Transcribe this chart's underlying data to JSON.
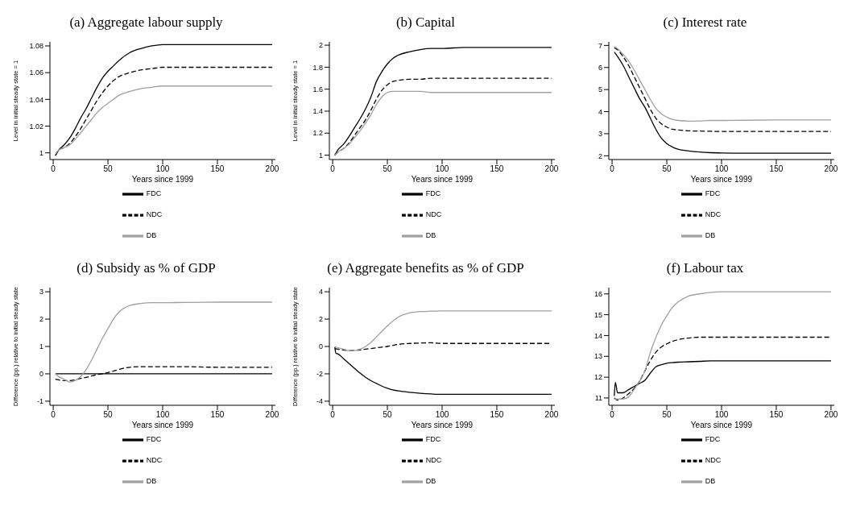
{
  "chart_data": [
    {
      "type": "line",
      "title": "(a) Aggregate labour supply",
      "xlabel": "Years since 1999",
      "ylabel": "Level in initial steady state = 1",
      "x": [
        2,
        5,
        10,
        15,
        20,
        25,
        30,
        35,
        40,
        45,
        50,
        55,
        60,
        70,
        80,
        90,
        100,
        120,
        150,
        200
      ],
      "xlim": [
        -3,
        203
      ],
      "xticks": [
        0,
        50,
        100,
        150,
        200
      ],
      "ylim": [
        0.995,
        1.083
      ],
      "yticks": [
        1,
        1.02,
        1.04,
        1.06,
        1.08
      ],
      "grid": false,
      "legend": "bottom",
      "series": [
        {
          "name": "FDC",
          "color": "#000000",
          "line_style": "solid",
          "values": [
            0.998,
            1.002,
            1.006,
            1.011,
            1.018,
            1.026,
            1.033,
            1.041,
            1.049,
            1.056,
            1.061,
            1.065,
            1.069,
            1.075,
            1.078,
            1.08,
            1.081,
            1.081,
            1.081,
            1.081
          ]
        },
        {
          "name": "NDC",
          "color": "#000000",
          "line_style": "dashed",
          "values": [
            0.998,
            1.002,
            1.004,
            1.007,
            1.012,
            1.018,
            1.025,
            1.032,
            1.039,
            1.045,
            1.05,
            1.054,
            1.057,
            1.06,
            1.062,
            1.063,
            1.064,
            1.064,
            1.064,
            1.064
          ]
        },
        {
          "name": "DB",
          "color": "#a0a0a0",
          "line_style": "solid",
          "values": [
            0.999,
            1.002,
            1.004,
            1.006,
            1.01,
            1.015,
            1.02,
            1.025,
            1.03,
            1.034,
            1.037,
            1.04,
            1.043,
            1.046,
            1.048,
            1.049,
            1.05,
            1.05,
            1.05,
            1.05
          ]
        }
      ]
    },
    {
      "type": "line",
      "title": "(b) Capital",
      "xlabel": "Years since 1999",
      "ylabel": "Level in initial steady state = 1",
      "x": [
        2,
        5,
        10,
        15,
        20,
        25,
        30,
        35,
        40,
        45,
        50,
        55,
        60,
        70,
        80,
        90,
        100,
        120,
        150,
        200
      ],
      "xlim": [
        -3,
        203
      ],
      "xticks": [
        0,
        50,
        100,
        150,
        200
      ],
      "ylim": [
        0.96,
        2.03
      ],
      "yticks": [
        1,
        1.2,
        1.4,
        1.6,
        1.8,
        2
      ],
      "grid": false,
      "legend": "bottom",
      "series": [
        {
          "name": "FDC",
          "color": "#000000",
          "line_style": "solid",
          "values": [
            1.0,
            1.05,
            1.1,
            1.17,
            1.25,
            1.33,
            1.42,
            1.53,
            1.67,
            1.76,
            1.83,
            1.88,
            1.91,
            1.94,
            1.96,
            1.97,
            1.97,
            1.98,
            1.98,
            1.98
          ]
        },
        {
          "name": "NDC",
          "color": "#000000",
          "line_style": "dashed",
          "values": [
            1.0,
            1.03,
            1.06,
            1.11,
            1.18,
            1.25,
            1.32,
            1.41,
            1.51,
            1.59,
            1.64,
            1.67,
            1.68,
            1.69,
            1.69,
            1.7,
            1.7,
            1.7,
            1.7,
            1.7
          ]
        },
        {
          "name": "DB",
          "color": "#a0a0a0",
          "line_style": "solid",
          "values": [
            1.0,
            1.03,
            1.06,
            1.1,
            1.16,
            1.22,
            1.29,
            1.37,
            1.46,
            1.53,
            1.57,
            1.58,
            1.58,
            1.58,
            1.58,
            1.57,
            1.57,
            1.57,
            1.57,
            1.57
          ]
        }
      ]
    },
    {
      "type": "line",
      "title": "(c) Interest rate",
      "xlabel": "Years since 1999",
      "x": [
        2,
        5,
        10,
        15,
        20,
        25,
        30,
        35,
        40,
        45,
        50,
        55,
        60,
        70,
        80,
        90,
        100,
        120,
        150,
        200
      ],
      "xlim": [
        -3,
        203
      ],
      "xticks": [
        0,
        50,
        100,
        150,
        200
      ],
      "ylim": [
        1.83,
        7.16
      ],
      "yticks": [
        2,
        3,
        4,
        5,
        6,
        7
      ],
      "grid": false,
      "legend": "bottom",
      "series": [
        {
          "name": "FDC",
          "color": "#000000",
          "line_style": "solid",
          "values": [
            6.7,
            6.5,
            6.1,
            5.6,
            5.1,
            4.6,
            4.2,
            3.7,
            3.2,
            2.8,
            2.55,
            2.4,
            2.3,
            2.22,
            2.17,
            2.14,
            2.13,
            2.12,
            2.12,
            2.12
          ]
        },
        {
          "name": "NDC",
          "color": "#000000",
          "line_style": "dashed",
          "values": [
            6.9,
            6.8,
            6.5,
            6.1,
            5.6,
            5.1,
            4.6,
            4.1,
            3.7,
            3.45,
            3.3,
            3.2,
            3.17,
            3.13,
            3.12,
            3.11,
            3.1,
            3.1,
            3.1,
            3.1
          ]
        },
        {
          "name": "DB",
          "color": "#a0a0a0",
          "line_style": "solid",
          "values": [
            6.95,
            6.85,
            6.6,
            6.3,
            5.9,
            5.45,
            5.0,
            4.55,
            4.15,
            3.9,
            3.75,
            3.65,
            3.6,
            3.57,
            3.58,
            3.6,
            3.6,
            3.61,
            3.62,
            3.62
          ]
        }
      ]
    },
    {
      "type": "line",
      "title": "(d) Subsidy as % of GDP",
      "xlabel": "Years since 1999",
      "ylabel": "Difference (pp.) relative to initial steady state",
      "x": [
        2,
        5,
        10,
        15,
        20,
        25,
        30,
        35,
        40,
        45,
        50,
        55,
        60,
        70,
        80,
        90,
        100,
        120,
        150,
        200
      ],
      "xlim": [
        -3,
        203
      ],
      "xticks": [
        0,
        50,
        100,
        150,
        200
      ],
      "ylim": [
        -1.15,
        3.15
      ],
      "yticks": [
        -1,
        0,
        1,
        2,
        3
      ],
      "grid": false,
      "legend": "bottom",
      "series": [
        {
          "name": "FDC",
          "color": "#000000",
          "line_style": "solid",
          "values": [
            0,
            0,
            0,
            0,
            0,
            0,
            0,
            0,
            0,
            0,
            0,
            0,
            0,
            0,
            0,
            0,
            0,
            0,
            0,
            0
          ]
        },
        {
          "name": "NDC",
          "color": "#000000",
          "line_style": "dashed",
          "values": [
            -0.2,
            -0.22,
            -0.25,
            -0.25,
            -0.22,
            -0.17,
            -0.13,
            -0.08,
            -0.03,
            0.0,
            0.05,
            0.1,
            0.16,
            0.24,
            0.26,
            0.26,
            0.26,
            0.26,
            0.24,
            0.24
          ]
        },
        {
          "name": "DB",
          "color": "#a0a0a0",
          "line_style": "solid",
          "values": [
            0,
            -0.1,
            -0.2,
            -0.3,
            -0.25,
            -0.1,
            0.15,
            0.5,
            0.9,
            1.3,
            1.65,
            2.0,
            2.25,
            2.5,
            2.57,
            2.6,
            2.6,
            2.61,
            2.62,
            2.62
          ]
        }
      ]
    },
    {
      "type": "line",
      "title": "(e) Aggregate benefits as % of GDP",
      "xlabel": "Years since 1999",
      "ylabel": "Difference (pp.) relative to initial steady state",
      "x": [
        2,
        5,
        10,
        15,
        20,
        25,
        30,
        35,
        40,
        45,
        50,
        55,
        60,
        70,
        80,
        90,
        100,
        120,
        150,
        200
      ],
      "xlim": [
        -3,
        203
      ],
      "xticks": [
        0,
        50,
        100,
        150,
        200
      ],
      "ylim": [
        -4.3,
        4.3
      ],
      "yticks": [
        -4,
        -2,
        0,
        2,
        4
      ],
      "grid": false,
      "legend": "bottom",
      "series": [
        {
          "name": "FDC",
          "color": "#000000",
          "line_style": "solid",
          "x": [
            2,
            3,
            5,
            10,
            15,
            20,
            25,
            30,
            35,
            40,
            45,
            50,
            55,
            60,
            70,
            80,
            90,
            100,
            120,
            150,
            200
          ],
          "values": [
            -0.05,
            -0.5,
            -0.55,
            -0.9,
            -1.25,
            -1.6,
            -1.95,
            -2.25,
            -2.5,
            -2.7,
            -2.9,
            -3.05,
            -3.17,
            -3.25,
            -3.35,
            -3.42,
            -3.47,
            -3.5,
            -3.5,
            -3.5,
            -3.5
          ]
        },
        {
          "name": "NDC",
          "color": "#000000",
          "line_style": "dashed",
          "values": [
            -0.15,
            -0.2,
            -0.25,
            -0.3,
            -0.28,
            -0.25,
            -0.2,
            -0.15,
            -0.1,
            -0.05,
            0,
            0.08,
            0.15,
            0.22,
            0.25,
            0.27,
            0.22,
            0.22,
            0.22,
            0.22
          ]
        },
        {
          "name": "DB",
          "color": "#a0a0a0",
          "line_style": "solid",
          "values": [
            0,
            -0.1,
            -0.2,
            -0.3,
            -0.3,
            -0.2,
            0,
            0.3,
            0.7,
            1.1,
            1.5,
            1.85,
            2.15,
            2.45,
            2.55,
            2.58,
            2.6,
            2.6,
            2.6,
            2.6
          ]
        }
      ]
    },
    {
      "type": "line",
      "title": "(f) Labour tax",
      "xlabel": "Years since 1999",
      "x": [
        2,
        5,
        10,
        15,
        20,
        25,
        30,
        35,
        40,
        45,
        50,
        55,
        60,
        70,
        80,
        90,
        100,
        120,
        150,
        200
      ],
      "xlim": [
        -3,
        203
      ],
      "xticks": [
        0,
        50,
        100,
        150,
        200
      ],
      "ylim": [
        10.65,
        16.3
      ],
      "yticks": [
        11,
        12,
        13,
        14,
        15,
        16
      ],
      "grid": false,
      "legend": "bottom",
      "series": [
        {
          "name": "FDC",
          "color": "#000000",
          "line_style": "solid",
          "x": [
            2,
            3,
            5,
            10,
            15,
            20,
            25,
            30,
            35,
            40,
            45,
            50,
            55,
            60,
            70,
            80,
            90,
            100,
            120,
            150,
            200
          ],
          "values": [
            11.1,
            11.75,
            11.25,
            11.25,
            11.4,
            11.55,
            11.7,
            11.85,
            12.2,
            12.5,
            12.6,
            12.67,
            12.7,
            12.72,
            12.74,
            12.76,
            12.78,
            12.78,
            12.78,
            12.78,
            12.78
          ]
        },
        {
          "name": "NDC",
          "color": "#000000",
          "line_style": "dashed",
          "values": [
            11.0,
            10.9,
            11.0,
            11.2,
            11.45,
            11.8,
            12.3,
            12.8,
            13.2,
            13.45,
            13.6,
            13.72,
            13.8,
            13.88,
            13.92,
            13.92,
            13.92,
            13.92,
            13.92,
            13.92
          ]
        },
        {
          "name": "DB",
          "color": "#a0a0a0",
          "line_style": "solid",
          "values": [
            10.95,
            10.95,
            10.95,
            11.05,
            11.4,
            11.8,
            12.3,
            13.2,
            13.9,
            14.5,
            14.95,
            15.35,
            15.6,
            15.9,
            16.0,
            16.07,
            16.1,
            16.1,
            16.1,
            16.1
          ]
        }
      ]
    }
  ]
}
